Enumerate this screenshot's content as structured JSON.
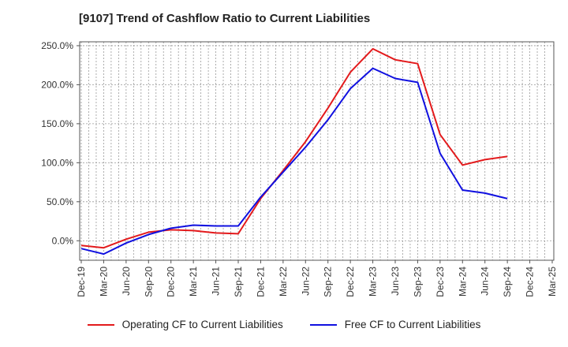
{
  "chart_data": {
    "type": "line",
    "title": "[9107]  Trend of Cashflow Ratio to Current Liabilities",
    "xlabel": "",
    "ylabel": "",
    "ylim": [
      -25,
      255
    ],
    "yticks": [
      "250.0%",
      "200.0%",
      "150.0%",
      "100.0%",
      "50.0%",
      "0.0%"
    ],
    "ytick_values": [
      250,
      200,
      150,
      100,
      50,
      0
    ],
    "categories": [
      "Dec-19",
      "Mar-20",
      "Jun-20",
      "Sep-20",
      "Dec-20",
      "Mar-21",
      "Jun-21",
      "Sep-21",
      "Dec-21",
      "Mar-22",
      "Jun-22",
      "Sep-22",
      "Dec-22",
      "Mar-23",
      "Jun-23",
      "Sep-23",
      "Dec-23",
      "Mar-24",
      "Jun-24",
      "Sep-24",
      "Dec-24",
      "Mar-25"
    ],
    "grid": true,
    "legend_position": "bottom",
    "series": [
      {
        "name": "Operating CF to Current Liabilities",
        "color": "#e31a1c",
        "values": [
          -6,
          -9,
          2,
          11,
          14,
          13,
          10,
          9,
          54,
          90,
          127,
          170,
          216,
          246,
          232,
          227,
          136,
          97,
          104,
          108,
          null,
          null
        ]
      },
      {
        "name": "Free CF to Current Liabilities",
        "color": "#1010e0",
        "values": [
          -10,
          -17,
          -3,
          8,
          16,
          20,
          19,
          19,
          56,
          88,
          120,
          155,
          195,
          221,
          208,
          203,
          112,
          65,
          61,
          54,
          null,
          null
        ]
      }
    ]
  }
}
